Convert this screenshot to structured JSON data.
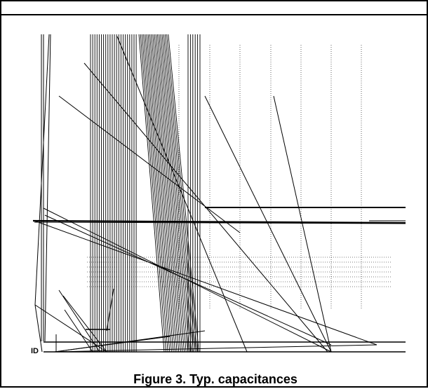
{
  "figure": {
    "caption": "Figure 3. Typ. capacitances",
    "stray_glyph": "ID"
  },
  "colors": {
    "ink": "#000000",
    "background": "#ffffff"
  }
}
